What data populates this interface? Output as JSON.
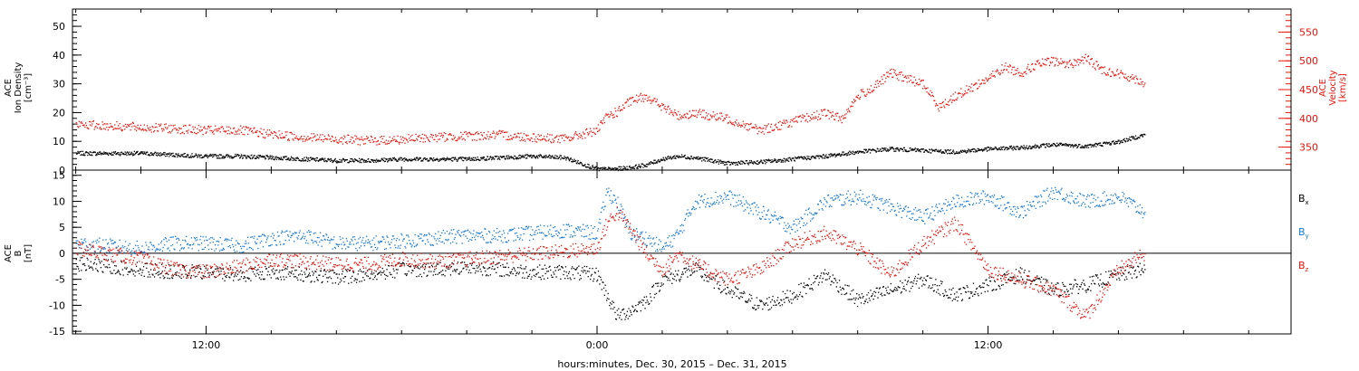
{
  "colors": {
    "black": "#000000",
    "red": "#e8140c",
    "blue": "#1478d2",
    "background": "#ffffff"
  },
  "xaxis": {
    "label": "hours:minutes, Dec. 30, 2015 – Dec. 31, 2015",
    "ticks": [
      "12:00",
      "0:00",
      "12:00"
    ]
  },
  "chart_data": [
    {
      "type": "scatter",
      "x_unit": "hours since 2015-12-30 00:00",
      "xlim": [
        7.9,
        45.3
      ],
      "ylim": [
        0,
        56
      ],
      "y2lim": [
        310,
        590
      ],
      "ylabel_lines": [
        "ACE",
        "Ion Density",
        "[cm⁻³]"
      ],
      "y2label_lines": [
        "ACE",
        "Velocity",
        "[km/s]"
      ],
      "yticks": [
        0,
        10,
        20,
        30,
        40,
        50
      ],
      "y2ticks": [
        350,
        400,
        450,
        500,
        550
      ],
      "series": [
        {
          "key": "density",
          "axis": "left",
          "color": "#000000",
          "x": [
            8.0,
            9.0,
            10.0,
            11.0,
            12.0,
            13.0,
            14.0,
            15.0,
            16.0,
            17.0,
            18.0,
            19.0,
            20.0,
            21.0,
            22.0,
            23.0,
            24.0,
            24.5,
            25.0,
            25.5,
            26.0,
            26.5,
            27.0,
            28.0,
            29.0,
            30.0,
            31.0,
            32.0,
            33.0,
            34.0,
            35.0,
            36.0,
            37.0,
            38.0,
            39.0,
            40.0,
            40.8
          ],
          "y": [
            6,
            6,
            6,
            5.5,
            5,
            5,
            4.5,
            4,
            3.5,
            3.5,
            4,
            4,
            4,
            4.5,
            5,
            4.5,
            0.5,
            0.5,
            1,
            2,
            4,
            5,
            4.5,
            2.5,
            3,
            4,
            5,
            6.5,
            7.5,
            7,
            6.5,
            7.5,
            8,
            9,
            8.5,
            10,
            12.5
          ]
        },
        {
          "key": "velocity",
          "axis": "right",
          "color": "#e8140c",
          "x": [
            8.0,
            9.0,
            10.0,
            11.0,
            12.0,
            13.0,
            14.0,
            15.0,
            16.0,
            17.0,
            18.0,
            19.0,
            20.0,
            21.0,
            22.0,
            23.0,
            24.0,
            24.3,
            24.6,
            25.0,
            25.5,
            26.0,
            26.5,
            27.0,
            28.0,
            29.0,
            30.0,
            31.0,
            31.5,
            32.0,
            32.5,
            33.0,
            33.5,
            34.0,
            34.5,
            35.0,
            35.5,
            36.0,
            36.5,
            37.0,
            37.5,
            38.0,
            38.5,
            39.0,
            39.5,
            40.0,
            40.5,
            40.8
          ],
          "y": [
            390,
            388,
            385,
            383,
            380,
            380,
            373,
            368,
            365,
            362,
            364,
            368,
            370,
            372,
            368,
            365,
            380,
            405,
            412,
            430,
            440,
            420,
            405,
            410,
            400,
            380,
            395,
            410,
            400,
            440,
            455,
            480,
            470,
            460,
            420,
            440,
            455,
            470,
            490,
            480,
            495,
            500,
            495,
            505,
            485,
            478,
            470,
            462
          ]
        }
      ]
    },
    {
      "type": "scatter",
      "x_unit": "hours since 2015-12-30 00:00",
      "xlim": [
        7.9,
        45.3
      ],
      "ylim": [
        -15.5,
        16
      ],
      "ylabel_lines": [
        "ACE",
        "B",
        "[nT]"
      ],
      "yticks": [
        -15,
        -10,
        -5,
        0,
        5,
        10,
        15
      ],
      "zero_line": true,
      "legend_position": "right",
      "series": [
        {
          "key": "bx",
          "name": "B",
          "sub": "x",
          "color": "#000000",
          "x": [
            8.0,
            9.0,
            10.0,
            11.0,
            12.0,
            13.0,
            14.0,
            15.0,
            16.0,
            17.0,
            18.0,
            19.0,
            20.0,
            21.0,
            22.0,
            23.0,
            24.0,
            24.3,
            24.6,
            25.0,
            25.5,
            26.0,
            26.5,
            27.0,
            28.0,
            29.0,
            30.0,
            31.0,
            32.0,
            33.0,
            34.0,
            35.0,
            36.0,
            37.0,
            38.0,
            39.0,
            40.0,
            40.8
          ],
          "y": [
            -2,
            -2.5,
            -3,
            -3.5,
            -3.5,
            -4,
            -3.5,
            -4,
            -4.5,
            -4,
            -3,
            -3,
            -2.5,
            -3,
            -3.5,
            -3.5,
            -4,
            -8,
            -12,
            -11,
            -9,
            -5,
            -4,
            -3,
            -7,
            -10,
            -8,
            -4,
            -9,
            -7,
            -5,
            -8,
            -6,
            -4,
            -7,
            -6,
            -4,
            -3
          ]
        },
        {
          "key": "by",
          "name": "B",
          "sub": "y",
          "color": "#1478d2",
          "x": [
            8.0,
            9.0,
            10.0,
            11.0,
            12.0,
            13.0,
            14.0,
            15.0,
            16.0,
            17.0,
            18.0,
            19.0,
            20.0,
            21.0,
            22.0,
            23.0,
            24.0,
            24.3,
            24.6,
            25.0,
            25.5,
            26.0,
            26.5,
            27.0,
            28.0,
            29.0,
            30.0,
            31.0,
            32.0,
            33.0,
            34.0,
            35.0,
            36.0,
            37.0,
            38.0,
            39.0,
            40.0,
            40.8
          ],
          "y": [
            2,
            1.5,
            1,
            2,
            2,
            1.5,
            3,
            3.5,
            2,
            2,
            2.5,
            3,
            3.5,
            3.5,
            4,
            4.5,
            4,
            12,
            10,
            4,
            3,
            1,
            4,
            10,
            11,
            8,
            5,
            10,
            11,
            9,
            7,
            10,
            11,
            8,
            12,
            10,
            11,
            8
          ]
        },
        {
          "key": "bz",
          "name": "B",
          "sub": "z",
          "color": "#e8140c",
          "x": [
            8.0,
            9.0,
            10.0,
            11.0,
            12.0,
            13.0,
            14.0,
            15.0,
            16.0,
            17.0,
            18.0,
            19.0,
            20.0,
            21.0,
            22.0,
            23.0,
            24.0,
            24.3,
            24.6,
            25.0,
            25.5,
            26.0,
            26.5,
            27.0,
            28.0,
            29.0,
            30.0,
            31.0,
            32.0,
            33.0,
            34.0,
            35.0,
            36.0,
            37.0,
            38.0,
            39.0,
            40.0,
            40.8
          ],
          "y": [
            1,
            0,
            -1,
            -3,
            -3.5,
            -2.5,
            -1,
            -1.5,
            -2,
            -2,
            -1,
            -1.5,
            -1,
            -0.5,
            0,
            0.5,
            1,
            6,
            8,
            5,
            0,
            -3,
            0,
            -2,
            -5,
            -3,
            2,
            4,
            1,
            -4,
            2,
            6,
            -3,
            -5,
            -7,
            -12,
            -3,
            0
          ]
        }
      ]
    }
  ]
}
